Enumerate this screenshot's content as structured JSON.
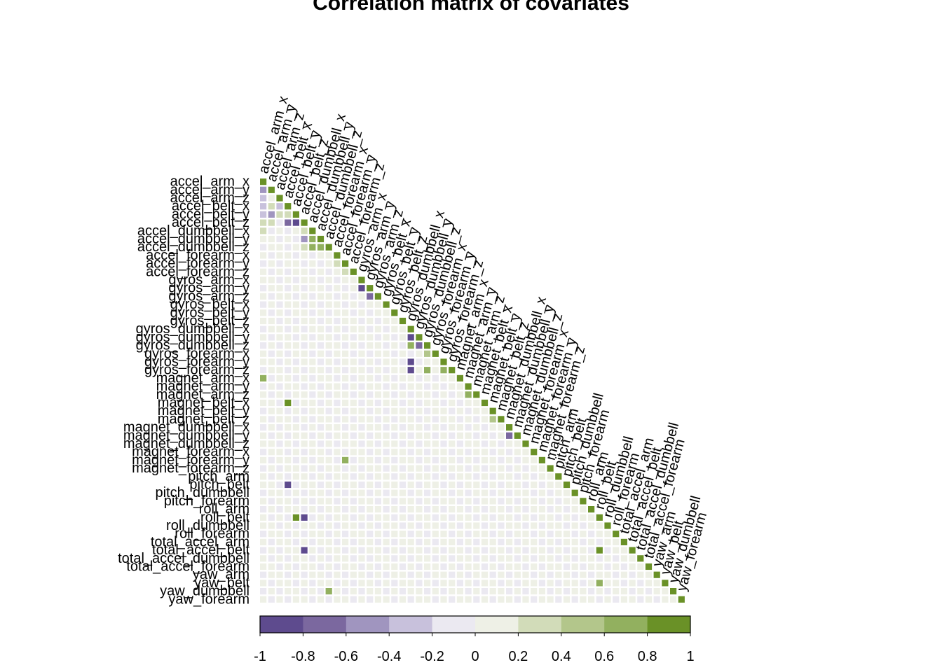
{
  "chart_data": {
    "type": "heatmap",
    "title": "Correlation matrix of covariates",
    "shape": "lower-triangle",
    "variables": [
      "accel_arm_x",
      "accel_arm_y",
      "accel_arm_z",
      "accel_belt_x",
      "accel_belt_y",
      "accel_belt_z",
      "accel_dumbbell_x",
      "accel_dumbbell_y",
      "accel_dumbbell_z",
      "accel_forearm_x",
      "accel_forearm_y",
      "accel_forearm_z",
      "gyros_arm_x",
      "gyros_arm_y",
      "gyros_arm_z",
      "gyros_belt_x",
      "gyros_belt_y",
      "gyros_belt_z",
      "gyros_dumbbell_x",
      "gyros_dumbbell_y",
      "gyros_dumbbell_z",
      "gyros_forearm_x",
      "gyros_forearm_y",
      "gyros_forearm_z",
      "magnet_arm_x",
      "magnet_arm_y",
      "magnet_arm_z",
      "magnet_belt_x",
      "magnet_belt_y",
      "magnet_belt_z",
      "magnet_dumbbell_x",
      "magnet_dumbbell_y",
      "magnet_dumbbell_z",
      "magnet_forearm_x",
      "magnet_forearm_y",
      "magnet_forearm_z",
      "pitch_arm",
      "pitch_belt",
      "pitch_dumbbell",
      "pitch_forearm",
      "roll_arm",
      "roll_belt",
      "roll_dumbbell",
      "roll_forearm",
      "total_accel_arm",
      "total_accel_belt",
      "total_accel_dumbbell",
      "total_accel_forearm",
      "yaw_arm",
      "yaw_belt",
      "yaw_dumbbell",
      "yaw_forearm"
    ],
    "correlations": [
      {
        "row": "accel_arm_y",
        "col": "accel_arm_x",
        "value": -0.5
      },
      {
        "row": "accel_arm_z",
        "col": "accel_arm_x",
        "value": -0.2
      },
      {
        "row": "accel_belt_x",
        "col": "accel_arm_x",
        "value": -0.2
      },
      {
        "row": "accel_belt_y",
        "col": "accel_arm_x",
        "value": -0.3
      },
      {
        "row": "accel_belt_z",
        "col": "accel_arm_x",
        "value": 0.3
      },
      {
        "row": "accel_belt_z",
        "col": "accel_arm_y",
        "value": 0.4
      },
      {
        "row": "accel_belt_y",
        "col": "accel_arm_y",
        "value": -0.5
      },
      {
        "row": "accel_belt_x",
        "col": "accel_arm_y",
        "value": 0.3
      },
      {
        "row": "accel_belt_x",
        "col": "accel_arm_z",
        "value": -0.3
      },
      {
        "row": "accel_belt_y",
        "col": "accel_arm_z",
        "value": 0.3
      },
      {
        "row": "accel_belt_y",
        "col": "accel_belt_x",
        "value": 0.3
      },
      {
        "row": "accel_belt_z",
        "col": "accel_belt_x",
        "value": -0.7
      },
      {
        "row": "accel_belt_z",
        "col": "accel_belt_y",
        "value": -0.9
      },
      {
        "row": "accel_dumbbell_x",
        "col": "accel_arm_x",
        "value": 0.3
      },
      {
        "row": "accel_dumbbell_x",
        "col": "accel_belt_z",
        "value": 0.4
      },
      {
        "row": "accel_dumbbell_y",
        "col": "accel_belt_z",
        "value": -0.5
      },
      {
        "row": "accel_dumbbell_z",
        "col": "accel_belt_z",
        "value": 0.4
      },
      {
        "row": "accel_dumbbell_y",
        "col": "accel_dumbbell_x",
        "value": 0.8
      },
      {
        "row": "accel_dumbbell_z",
        "col": "accel_dumbbell_x",
        "value": 0.7
      },
      {
        "row": "accel_dumbbell_z",
        "col": "accel_dumbbell_y",
        "value": 0.8
      },
      {
        "row": "accel_forearm_y",
        "col": "accel_forearm_x",
        "value": 0.4
      },
      {
        "row": "accel_forearm_z",
        "col": "accel_forearm_y",
        "value": 0.3
      },
      {
        "row": "gyros_arm_y",
        "col": "gyros_arm_x",
        "value": -0.9
      },
      {
        "row": "gyros_arm_z",
        "col": "gyros_arm_y",
        "value": -0.6
      },
      {
        "row": "gyros_dumbbell_y",
        "col": "gyros_dumbbell_x",
        "value": -0.8
      },
      {
        "row": "gyros_dumbbell_z",
        "col": "gyros_dumbbell_x",
        "value": 0.7
      },
      {
        "row": "gyros_dumbbell_z",
        "col": "gyros_dumbbell_y",
        "value": -0.6
      },
      {
        "row": "gyros_forearm_x",
        "col": "gyros_dumbbell_z",
        "value": 0.6
      },
      {
        "row": "gyros_forearm_y",
        "col": "gyros_dumbbell_x",
        "value": -0.8
      },
      {
        "row": "gyros_forearm_z",
        "col": "gyros_dumbbell_x",
        "value": -0.9
      },
      {
        "row": "gyros_forearm_z",
        "col": "gyros_dumbbell_z",
        "value": 0.7
      },
      {
        "row": "gyros_forearm_z",
        "col": "gyros_forearm_y",
        "value": 0.7
      },
      {
        "row": "magnet_arm_x",
        "col": "accel_arm_x",
        "value": 0.8
      },
      {
        "row": "magnet_arm_z",
        "col": "magnet_arm_y",
        "value": 0.8
      },
      {
        "row": "magnet_belt_x",
        "col": "accel_belt_x",
        "value": 0.9
      },
      {
        "row": "magnet_belt_z",
        "col": "magnet_belt_y",
        "value": 0.6
      },
      {
        "row": "magnet_dumbbell_y",
        "col": "magnet_dumbbell_x",
        "value": -0.6
      },
      {
        "row": "magnet_forearm_y",
        "col": "accel_forearm_y",
        "value": 0.7
      },
      {
        "row": "pitch_belt",
        "col": "accel_belt_x",
        "value": -0.9
      },
      {
        "row": "roll_belt",
        "col": "accel_belt_z",
        "value": -0.9
      },
      {
        "row": "roll_belt",
        "col": "accel_belt_y",
        "value": 0.9
      },
      {
        "row": "total_accel_belt",
        "col": "accel_belt_z",
        "value": -0.9
      },
      {
        "row": "total_accel_belt",
        "col": "roll_belt",
        "value": 0.9
      },
      {
        "row": "yaw_belt",
        "col": "roll_belt",
        "value": 0.8
      },
      {
        "row": "yaw_dumbbell",
        "col": "accel_dumbbell_z",
        "value": 0.8
      }
    ],
    "color_scale": {
      "breaks": [
        -1,
        -0.8,
        -0.6,
        -0.4,
        -0.2,
        0,
        0.2,
        0.4,
        0.6,
        0.8,
        1
      ],
      "tick_labels": [
        "-1",
        "-0.8",
        "-0.6",
        "-0.4",
        "-0.2",
        "0",
        "0.2",
        "0.4",
        "0.6",
        "0.8",
        "1"
      ],
      "colors": [
        "#5e4b8e",
        "#7b689f",
        "#a095bf",
        "#c8c1dc",
        "#ebe9f1",
        "#eef0e6",
        "#d2dcb9",
        "#b3c68b",
        "#92b05f",
        "#6a9127"
      ]
    },
    "diagonal_color": "#6a9127"
  }
}
